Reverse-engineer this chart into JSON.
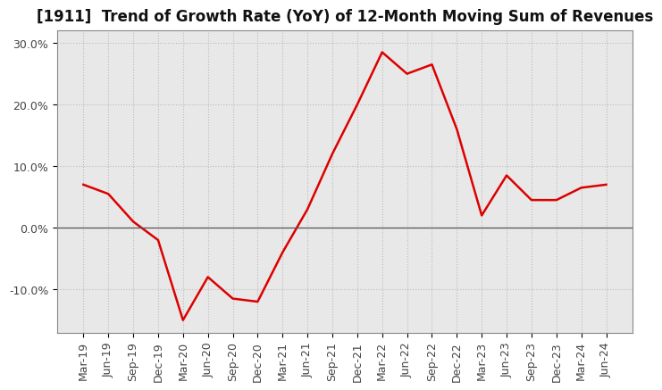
{
  "title": "[1911]  Trend of Growth Rate (YoY) of 12-Month Moving Sum of Revenues",
  "x_labels": [
    "Mar-19",
    "Jun-19",
    "Sep-19",
    "Dec-19",
    "Mar-20",
    "Jun-20",
    "Sep-20",
    "Dec-20",
    "Mar-21",
    "Jun-21",
    "Sep-21",
    "Dec-21",
    "Mar-22",
    "Jun-22",
    "Sep-22",
    "Dec-22",
    "Mar-23",
    "Jun-23",
    "Sep-23",
    "Dec-23",
    "Mar-24",
    "Jun-24"
  ],
  "y_values": [
    7.0,
    5.5,
    1.0,
    -2.0,
    -15.0,
    -8.0,
    -11.5,
    -12.0,
    -4.0,
    3.0,
    12.0,
    20.0,
    28.5,
    25.0,
    26.5,
    16.0,
    2.0,
    8.5,
    4.5,
    4.5,
    6.5,
    7.0
  ],
  "line_color": "#dd0000",
  "line_width": 1.8,
  "ylim": [
    -17,
    32
  ],
  "yticks": [
    -10.0,
    0.0,
    10.0,
    20.0,
    30.0
  ],
  "ytick_labels": [
    "-10.0%",
    "0.0%",
    "10.0%",
    "20.0%",
    "30.0%"
  ],
  "background_color": "#ffffff",
  "plot_bg_color": "#e8e8e8",
  "grid_color": "#bbbbbb",
  "title_fontsize": 12,
  "tick_fontsize": 9,
  "title_fontweight": "bold"
}
